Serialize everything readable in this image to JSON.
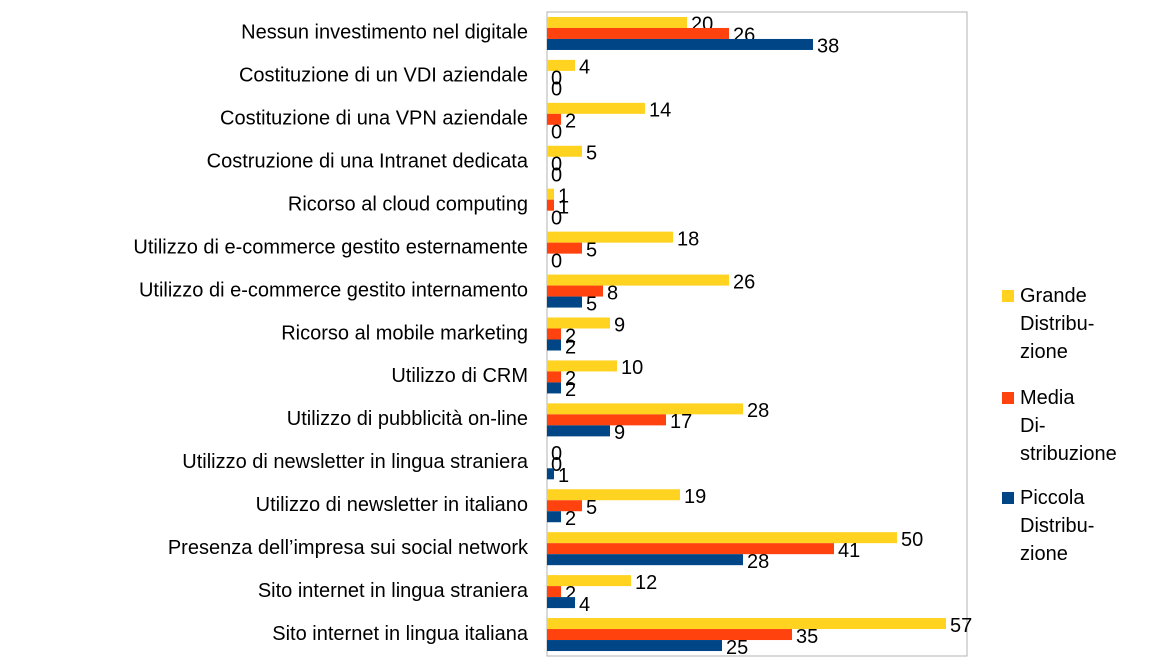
{
  "chart_data": {
    "type": "bar",
    "orientation": "horizontal",
    "categories": [
      "Nessun investimento nel digitale",
      "Costituzione di un VDI aziendale",
      "Costituzione di una VPN aziendale",
      "Costruzione di una Intranet dedicata",
      "Ricorso al cloud computing",
      "Utilizzo di e-commerce gestito esternamente",
      "Utilizzo di e-commerce gestito internamento",
      "Ricorso al mobile marketing",
      "Utilizzo di CRM",
      "Utilizzo di pubblicità on-line",
      "Utilizzo di newsletter in lingua straniera",
      "Utilizzo di newsletter in italiano",
      "Presenza dell’impresa sui social network",
      "Sito internet in lingua straniera",
      "Sito internet in lingua italiana"
    ],
    "series": [
      {
        "name": "Grande Distribu­zione",
        "color": "#ffd320",
        "values": [
          20,
          4,
          14,
          5,
          1,
          18,
          26,
          9,
          10,
          28,
          0,
          19,
          50,
          12,
          57
        ]
      },
      {
        "name": "Media Di­stribuzione",
        "color": "#ff420e",
        "values": [
          26,
          0,
          2,
          0,
          1,
          5,
          8,
          2,
          2,
          17,
          0,
          5,
          41,
          2,
          35
        ]
      },
      {
        "name": "Piccola Distribu­zione",
        "color": "#004586",
        "values": [
          38,
          0,
          0,
          0,
          0,
          0,
          5,
          2,
          2,
          9,
          1,
          2,
          28,
          4,
          25
        ]
      }
    ],
    "xlim": [
      0,
      60
    ]
  }
}
